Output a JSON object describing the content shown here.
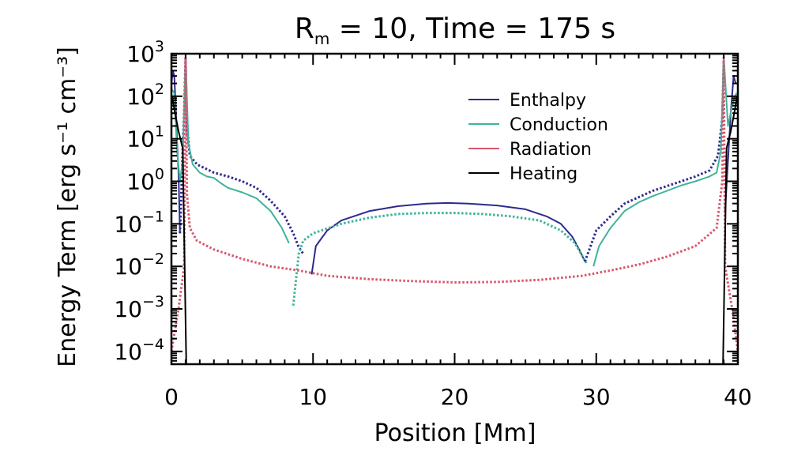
{
  "chart_data": {
    "type": "line",
    "title_parts": {
      "main": "R",
      "sub": "m",
      "rest": " = 10, Time = 175 s"
    },
    "xlabel": "Position [Mm]",
    "ylabel": "Energy Term [erg s⁻¹ cm⁻³]",
    "xlim": [
      0,
      40
    ],
    "ylim_log10": [
      -4.3,
      3
    ],
    "yscale": "log",
    "x_ticks": [
      "0",
      "10",
      "20",
      "30",
      "40"
    ],
    "x_tick_values": [
      0,
      10,
      20,
      30,
      40
    ],
    "y_ticks": [
      {
        "base": "10",
        "exp": "3",
        "value": 3
      },
      {
        "base": "10",
        "exp": "2",
        "value": 2
      },
      {
        "base": "10",
        "exp": "1",
        "value": 1
      },
      {
        "base": "10",
        "exp": "0",
        "value": 0
      },
      {
        "base": "10",
        "exp": "−1",
        "value": -1
      },
      {
        "base": "10",
        "exp": "−2",
        "value": -2
      },
      {
        "base": "10",
        "exp": "−3",
        "value": -3
      },
      {
        "base": "10",
        "exp": "−4",
        "value": -4
      }
    ],
    "legend_position": "top-right",
    "note": "solid = positive values, dotted = negative values",
    "series": [
      {
        "name": "Enthalpy",
        "color": "#2e2a8c",
        "segments": [
          {
            "style": "solid",
            "points": [
              [
                0,
                200
              ],
              [
                0.1,
                400
              ],
              [
                0.2,
                300
              ],
              [
                0.3,
                60
              ],
              [
                0.4,
                8
              ],
              [
                0.5,
                1.5
              ],
              [
                0.6,
                0.06
              ]
            ]
          },
          {
            "style": "dotted",
            "points": [
              [
                0.6,
                0.06
              ],
              [
                0.7,
                0.5
              ],
              [
                0.8,
                6
              ],
              [
                0.9,
                40
              ],
              [
                1.0,
                800
              ]
            ]
          },
          {
            "style": "dotted",
            "points": [
              [
                1.0,
                800
              ],
              [
                1.1,
                20
              ],
              [
                1.3,
                4
              ],
              [
                1.8,
                2.5
              ],
              [
                3,
                1.6
              ],
              [
                4,
                1.3
              ],
              [
                5,
                1.0
              ],
              [
                6,
                0.7
              ],
              [
                7,
                0.35
              ],
              [
                8,
                0.15
              ],
              [
                8.6,
                0.06
              ],
              [
                9.0,
                0.028
              ],
              [
                9.3,
                0.02
              ]
            ]
          },
          {
            "style": "solid",
            "points": [
              [
                9.9,
                0.0065
              ],
              [
                10.2,
                0.03
              ],
              [
                11,
                0.07
              ],
              [
                12,
                0.12
              ],
              [
                14,
                0.2
              ],
              [
                16,
                0.26
              ],
              [
                18,
                0.3
              ],
              [
                19.5,
                0.31
              ],
              [
                21,
                0.3
              ],
              [
                23,
                0.27
              ],
              [
                25,
                0.22
              ],
              [
                26.5,
                0.15
              ],
              [
                27.5,
                0.1
              ],
              [
                28.3,
                0.05
              ],
              [
                28.8,
                0.025
              ],
              [
                29.2,
                0.013
              ]
            ]
          },
          {
            "style": "dotted",
            "points": [
              [
                29.2,
                0.013
              ],
              [
                29.6,
                0.03
              ],
              [
                30,
                0.07
              ],
              [
                31,
                0.15
              ],
              [
                32,
                0.3
              ],
              [
                34,
                0.6
              ],
              [
                36,
                1.0
              ],
              [
                37,
                1.3
              ],
              [
                38,
                1.8
              ],
              [
                38.6,
                4
              ],
              [
                38.9,
                30
              ],
              [
                39.0,
                600
              ]
            ]
          },
          {
            "style": "solid",
            "points": [
              [
                39.1,
                0.2
              ],
              [
                39.3,
                3
              ],
              [
                39.5,
                40
              ],
              [
                39.7,
                300
              ],
              [
                39.85,
                200
              ]
            ]
          }
        ]
      },
      {
        "name": "Conduction",
        "color": "#3fb39a",
        "segments": [
          {
            "style": "solid",
            "points": [
              [
                0,
                150
              ],
              [
                0.2,
                120
              ],
              [
                0.4,
                5
              ],
              [
                0.6,
                1.0
              ],
              [
                0.8,
                3
              ],
              [
                1.0,
                900
              ],
              [
                1.2,
                8
              ],
              [
                1.5,
                2.5
              ],
              [
                2,
                1.6
              ],
              [
                2.5,
                1.3
              ],
              [
                3,
                1.2
              ],
              [
                3.5,
                0.9
              ],
              [
                4,
                0.7
              ],
              [
                5,
                0.55
              ],
              [
                6,
                0.4
              ],
              [
                7,
                0.2
              ],
              [
                7.8,
                0.08
              ],
              [
                8.3,
                0.035
              ]
            ]
          },
          {
            "style": "dotted",
            "points": [
              [
                8.6,
                0.0012
              ],
              [
                8.8,
                0.005
              ],
              [
                9.0,
                0.02
              ],
              [
                9.3,
                0.04
              ],
              [
                10,
                0.06
              ],
              [
                12,
                0.1
              ],
              [
                14,
                0.14
              ],
              [
                16,
                0.17
              ],
              [
                18,
                0.18
              ],
              [
                20,
                0.18
              ],
              [
                22,
                0.17
              ],
              [
                24,
                0.15
              ],
              [
                26,
                0.12
              ],
              [
                27.5,
                0.07
              ],
              [
                28.5,
                0.035
              ],
              [
                29.3,
                0.012
              ]
            ]
          },
          {
            "style": "solid",
            "points": [
              [
                29.8,
                0.01
              ],
              [
                30.2,
                0.03
              ],
              [
                31,
                0.08
              ],
              [
                32,
                0.2
              ],
              [
                33,
                0.32
              ],
              [
                34,
                0.45
              ],
              [
                35,
                0.6
              ],
              [
                36,
                0.8
              ],
              [
                37,
                1.0
              ],
              [
                38,
                1.3
              ],
              [
                38.5,
                1.6
              ],
              [
                38.8,
                5
              ],
              [
                39.0,
                900
              ],
              [
                39.3,
                20
              ],
              [
                39.6,
                60
              ],
              [
                39.9,
                120
              ]
            ]
          }
        ]
      },
      {
        "name": "Radiation",
        "color": "#d9566e",
        "segments": [
          {
            "style": "dotted",
            "points": [
              [
                0,
                0.0001
              ],
              [
                0.5,
                0.001
              ],
              [
                0.9,
                0.01
              ],
              [
                1.0,
                800
              ],
              [
                1.1,
                0.5
              ],
              [
                1.3,
                0.08
              ],
              [
                1.8,
                0.04
              ],
              [
                3,
                0.025
              ],
              [
                5,
                0.015
              ],
              [
                7,
                0.01
              ],
              [
                9,
                0.008
              ],
              [
                11,
                0.006
              ],
              [
                14,
                0.005
              ],
              [
                17,
                0.0045
              ],
              [
                20,
                0.0042
              ],
              [
                23,
                0.0043
              ],
              [
                26,
                0.0048
              ],
              [
                29,
                0.006
              ],
              [
                31,
                0.008
              ],
              [
                33,
                0.011
              ],
              [
                35,
                0.017
              ],
              [
                37,
                0.03
              ],
              [
                38.5,
                0.08
              ],
              [
                38.9,
                1
              ],
              [
                39.0,
                800
              ],
              [
                39.1,
                0.01
              ],
              [
                39.6,
                0.001
              ],
              [
                40,
                0.0001
              ]
            ]
          }
        ]
      },
      {
        "name": "Heating",
        "color": "#000000",
        "segments": [
          {
            "style": "solid",
            "points": [
              [
                0.05,
                100
              ],
              [
                0.2,
                50
              ],
              [
                0.5,
                15
              ],
              [
                0.8,
                6
              ],
              [
                1.05,
                5e-05
              ]
            ]
          },
          {
            "style": "solid",
            "points": [
              [
                38.95,
                5e-05
              ],
              [
                39.2,
                6
              ],
              [
                39.5,
                15
              ],
              [
                39.8,
                50
              ],
              [
                39.95,
                100
              ]
            ]
          }
        ]
      }
    ]
  }
}
